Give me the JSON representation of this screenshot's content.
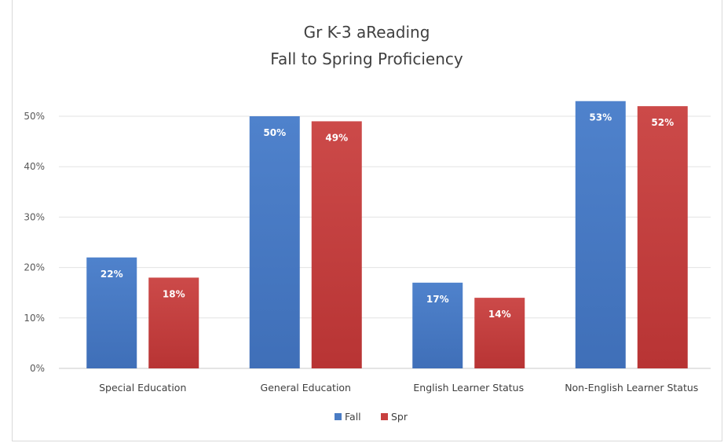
{
  "chart_data": {
    "type": "bar",
    "title": "Gr K-3 aReading",
    "subtitle": "Fall to Spring Proficiency",
    "categories": [
      "Special Education",
      "General Education",
      "English Learner Status",
      "Non-English Learner Status"
    ],
    "series": [
      {
        "name": "Fall",
        "values": [
          22,
          50,
          17,
          53
        ],
        "color": "#4a7cc4"
      },
      {
        "name": "Spr",
        "values": [
          18,
          49,
          14,
          52
        ],
        "color": "#c8403f"
      }
    ],
    "data_labels": [
      [
        "22%",
        "50%",
        "17%",
        "53%"
      ],
      [
        "18%",
        "49%",
        "14%",
        "52%"
      ]
    ],
    "y_ticks": [
      "0%",
      "10%",
      "20%",
      "30%",
      "40%",
      "50%"
    ],
    "ylim": [
      0,
      50
    ],
    "grid": true,
    "legend_position": "bottom"
  }
}
